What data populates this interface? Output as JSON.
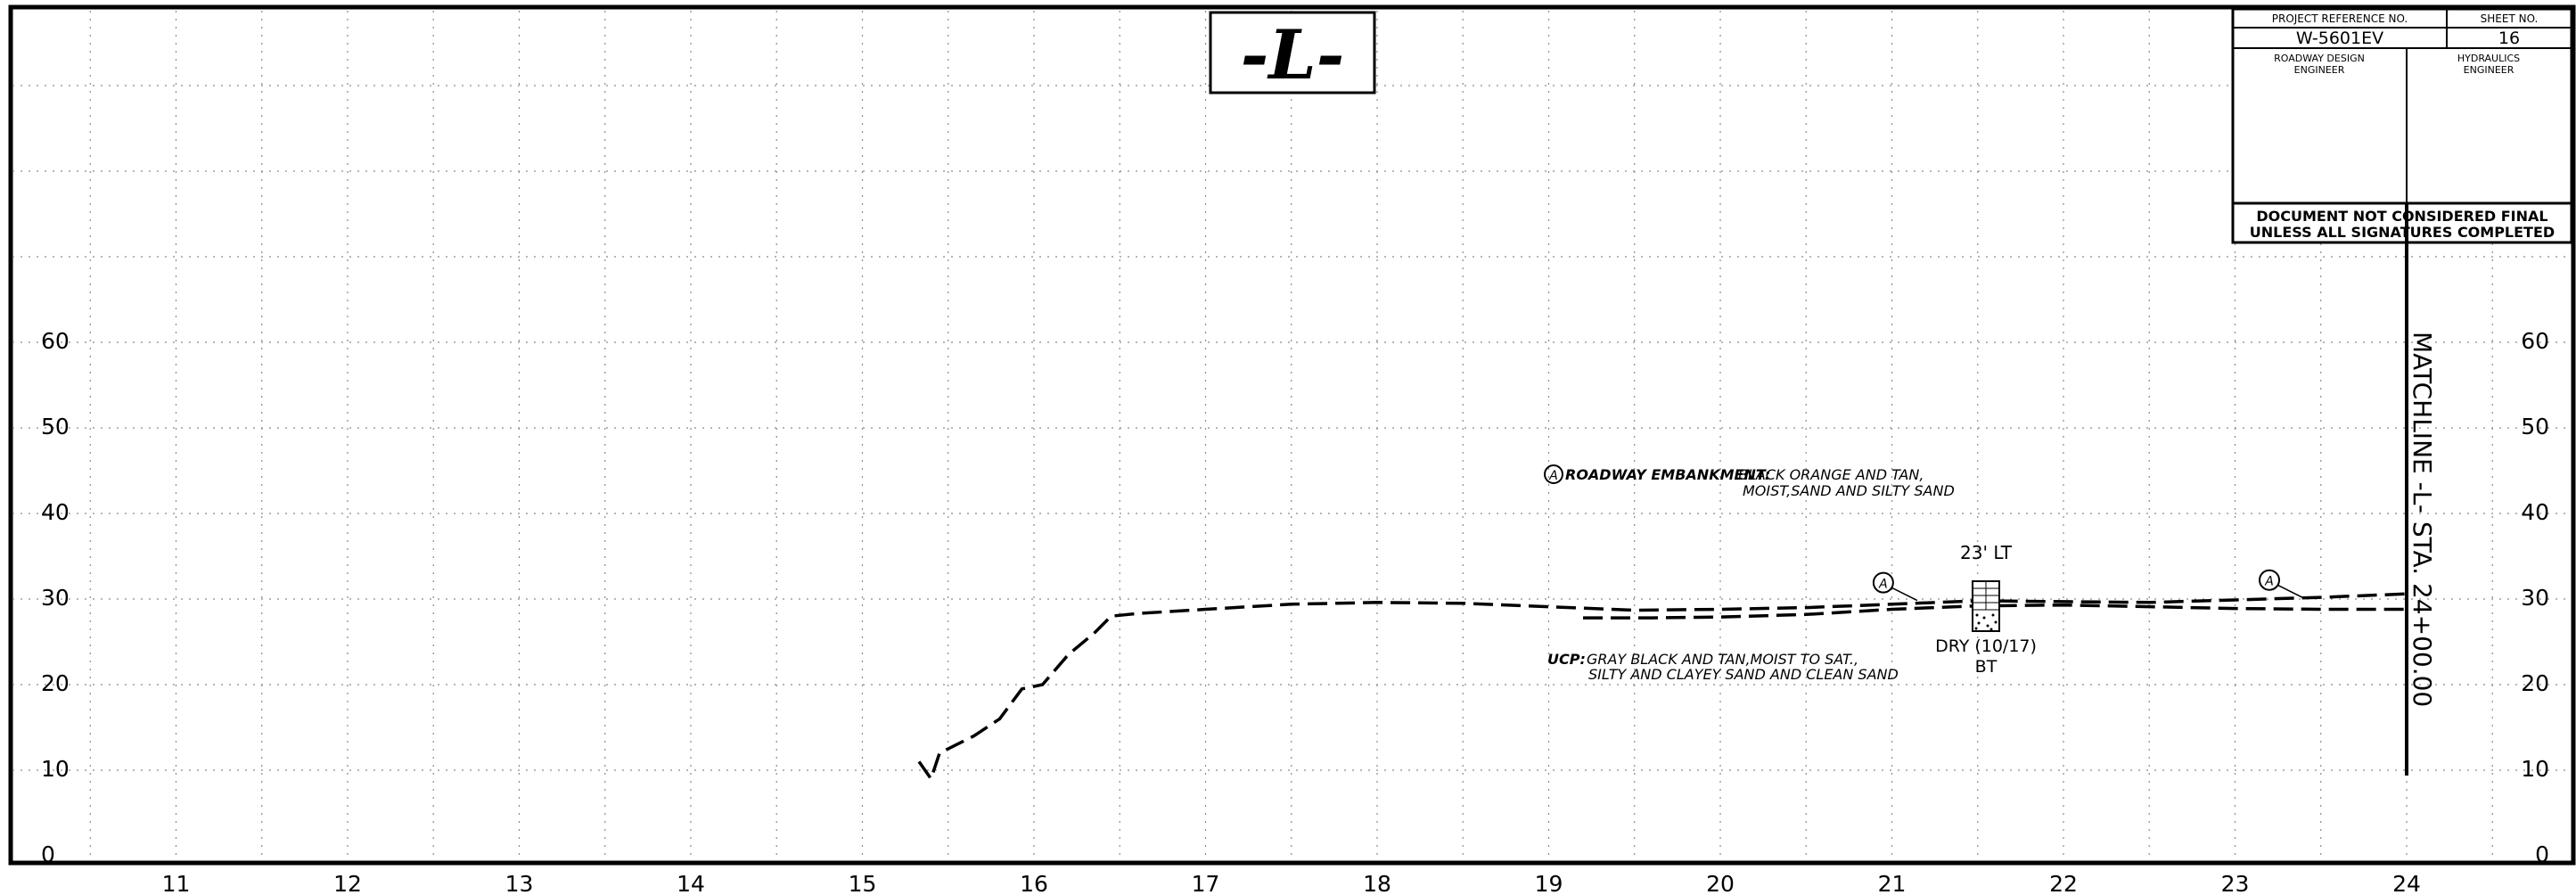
{
  "profile_label": "-L-",
  "title_block": {
    "project_reference_label": "PROJECT REFERENCE NO.",
    "project_reference_value": "W-5601EV",
    "sheet_no_label": "SHEET NO.",
    "sheet_no_value": "16",
    "roadway_engineer_label_1": "ROADWAY DESIGN",
    "roadway_engineer_label_2": "ENGINEER",
    "hydraulics_engineer_label_1": "HYDRAULICS",
    "hydraulics_engineer_label_2": "ENGINEER",
    "notice_line_1": "DOCUMENT NOT CONSIDERED FINAL",
    "notice_line_2": "UNLESS ALL SIGNATURES COMPLETED"
  },
  "matchline": "MATCHLINE -L- STA. 24+00.00",
  "elevation_labels": [
    "0",
    "10",
    "20",
    "30",
    "40",
    "50",
    "60"
  ],
  "station_labels": [
    "11",
    "12",
    "13",
    "14",
    "15",
    "16",
    "17",
    "18",
    "19",
    "20",
    "21",
    "22",
    "23",
    "24"
  ],
  "legend": {
    "marker": "A",
    "embankment_title": "ROADWAY EMBANKMENT:",
    "embankment_desc_1": "BLACK ORANGE AND TAN,",
    "embankment_desc_2": "MOIST,SAND AND SILTY SAND",
    "ucp_title": "UCP:",
    "ucp_desc_1": "GRAY BLACK AND TAN,MOIST TO SAT.,",
    "ucp_desc_2": "SILTY AND CLAYEY SAND AND CLEAN SAND"
  },
  "boring": {
    "offset": "23' LT",
    "water_status": "DRY (10/17)",
    "type": "BT"
  },
  "profile_data": {
    "existing_ground": [
      [
        15.33,
        11
      ],
      [
        15.4,
        9
      ],
      [
        15.45,
        12
      ],
      [
        15.65,
        14
      ],
      [
        15.8,
        16
      ],
      [
        15.93,
        19.5
      ],
      [
        16.05,
        20
      ],
      [
        16.2,
        23.5
      ],
      [
        16.35,
        26
      ],
      [
        16.45,
        28
      ],
      [
        16.6,
        28.3
      ],
      [
        17.0,
        28.8
      ],
      [
        17.5,
        29.4
      ],
      [
        18.0,
        29.6
      ],
      [
        18.5,
        29.5
      ],
      [
        19.0,
        29.1
      ],
      [
        19.5,
        28.7
      ],
      [
        20.0,
        28.8
      ],
      [
        20.5,
        29.0
      ],
      [
        21.0,
        29.4
      ],
      [
        21.5,
        29.8
      ],
      [
        22.0,
        29.7
      ],
      [
        22.5,
        29.6
      ],
      [
        23.0,
        29.9
      ],
      [
        23.5,
        30.2
      ],
      [
        24.0,
        30.6
      ]
    ],
    "ucp_boundary": [
      [
        19.2,
        27.8
      ],
      [
        19.6,
        27.8
      ],
      [
        20.0,
        27.9
      ],
      [
        20.5,
        28.2
      ],
      [
        21.0,
        28.8
      ],
      [
        21.5,
        29.2
      ],
      [
        22.0,
        29.3
      ],
      [
        22.5,
        29.1
      ],
      [
        23.0,
        28.9
      ],
      [
        23.5,
        28.8
      ],
      [
        24.0,
        28.8
      ]
    ],
    "marker_a_positions": [
      [
        20.95,
        31.5
      ],
      [
        23.2,
        31.8
      ]
    ]
  }
}
